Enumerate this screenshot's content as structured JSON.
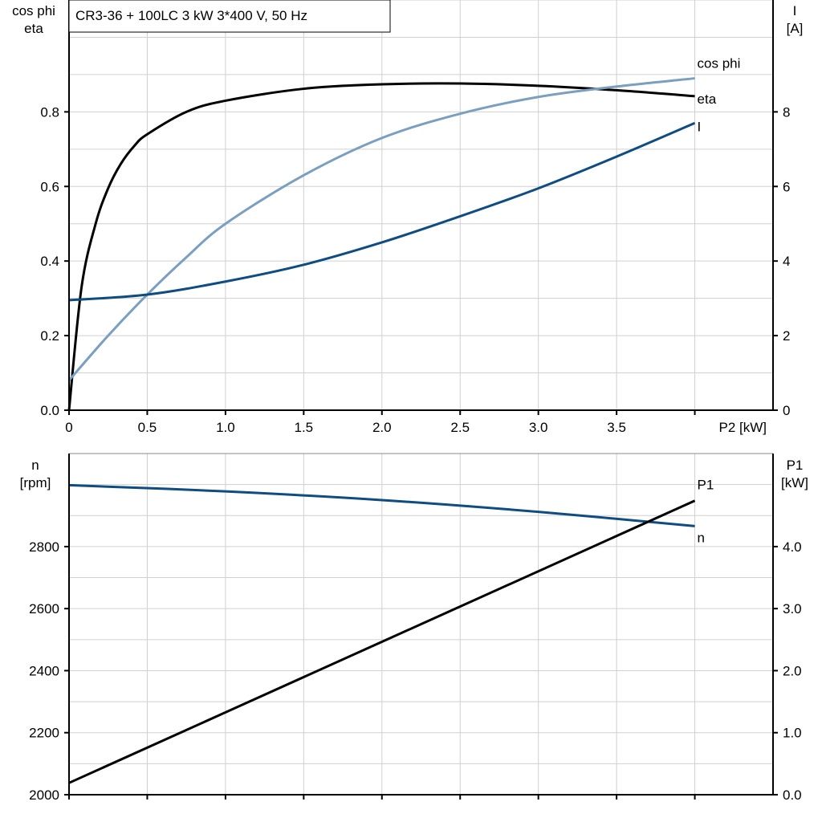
{
  "title": "CR3-36 + 100LC   3 kW   3*400 V, 50 Hz",
  "colors": {
    "eta": "#000000",
    "cos_phi": "#7a9fc0",
    "I": "#0f4c81",
    "n": "#0f4c81",
    "P1": "#000000",
    "grid": "#d0d0d0"
  },
  "chart_data": [
    {
      "type": "line",
      "xlabel": "P2 [kW]",
      "xlim": [
        0,
        4.5
      ],
      "x_ticks": [
        "0",
        "0.5",
        "1.0",
        "1.5",
        "2.0",
        "2.5",
        "3.0",
        "3.5"
      ],
      "ylabel_left": [
        "cos phi",
        "eta"
      ],
      "ylim_left": [
        0,
        1.1
      ],
      "y_ticks_left": [
        "0.0",
        "0.2",
        "0.4",
        "0.6",
        "0.8"
      ],
      "ylabel_right": [
        "I",
        "[A]"
      ],
      "ylim_right": [
        0,
        11
      ],
      "y_ticks_right": [
        "0",
        "2",
        "4",
        "6",
        "8"
      ],
      "grid": true,
      "series": [
        {
          "name": "eta",
          "axis": "left",
          "x": [
            0,
            0.08,
            0.17,
            0.25,
            0.33,
            0.42,
            0.5,
            0.75,
            1.0,
            1.5,
            2.0,
            2.5,
            3.0,
            3.5,
            4.0
          ],
          "y": [
            0,
            0.33,
            0.5,
            0.595,
            0.66,
            0.71,
            0.74,
            0.8,
            0.83,
            0.862,
            0.874,
            0.876,
            0.87,
            0.858,
            0.842
          ]
        },
        {
          "name": "cos phi",
          "axis": "left",
          "x": [
            0,
            0.25,
            0.5,
            0.75,
            1.0,
            1.5,
            2.0,
            2.5,
            3.0,
            3.5,
            4.0
          ],
          "y": [
            0.08,
            0.2,
            0.31,
            0.41,
            0.5,
            0.63,
            0.73,
            0.795,
            0.84,
            0.868,
            0.89
          ]
        },
        {
          "name": "I",
          "axis": "right",
          "x": [
            0,
            0.5,
            1.0,
            1.5,
            2.0,
            2.5,
            3.0,
            3.5,
            4.0
          ],
          "y": [
            2.95,
            3.1,
            3.45,
            3.9,
            4.5,
            5.2,
            5.95,
            6.8,
            7.7
          ]
        }
      ]
    },
    {
      "type": "line",
      "xlim": [
        0,
        4.5
      ],
      "ylabel_left": [
        "n",
        "[rpm]"
      ],
      "ylim_left": [
        2000,
        3100
      ],
      "y_ticks_left": [
        "2000",
        "2200",
        "2400",
        "2600",
        "2800"
      ],
      "ylabel_right": [
        "P1",
        "[kW]"
      ],
      "ylim_right": [
        0,
        5.5
      ],
      "y_ticks_right": [
        "0.0",
        "1.0",
        "2.0",
        "3.0",
        "4.0"
      ],
      "grid": true,
      "series": [
        {
          "name": "n",
          "axis": "left",
          "x": [
            0,
            1.0,
            2.0,
            3.0,
            4.0
          ],
          "y": [
            2998,
            2978,
            2950,
            2912,
            2866
          ]
        },
        {
          "name": "P1",
          "axis": "right",
          "x": [
            0,
            4.0
          ],
          "y": [
            0.19,
            4.74
          ]
        }
      ]
    }
  ]
}
